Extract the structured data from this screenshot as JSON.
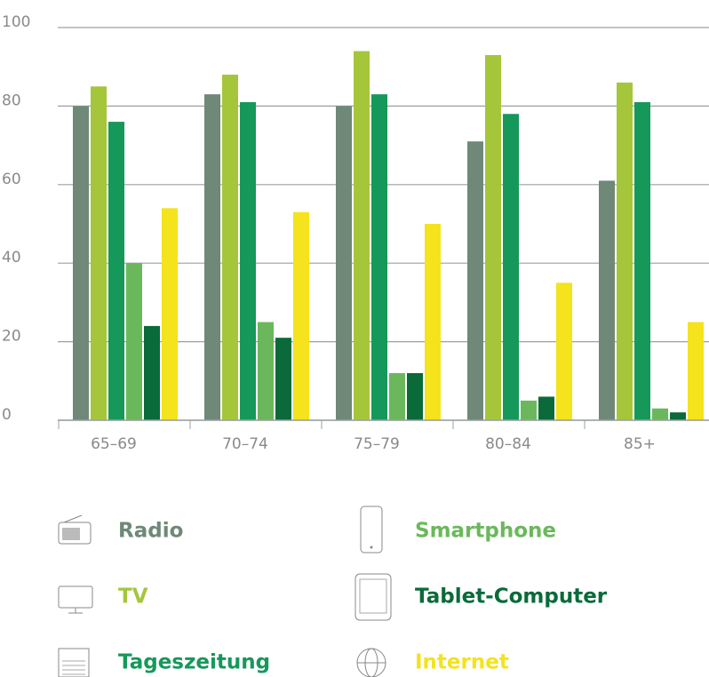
{
  "chart_data": {
    "type": "bar",
    "categories": [
      "65–69",
      "70–74",
      "75–79",
      "80–84",
      "85+"
    ],
    "series": [
      {
        "name": "Radio",
        "color": "#6f8878",
        "values": [
          80,
          83,
          80,
          71,
          61
        ]
      },
      {
        "name": "TV",
        "color": "#a5c63b",
        "values": [
          85,
          88,
          94,
          93,
          86
        ]
      },
      {
        "name": "Tageszeitung",
        "color": "#16985a",
        "values": [
          76,
          81,
          83,
          78,
          81
        ]
      },
      {
        "name": "Smartphone",
        "color": "#6bb85c",
        "values": [
          40,
          25,
          12,
          5,
          3
        ]
      },
      {
        "name": "Tablet-Computer",
        "color": "#0a6a3a",
        "values": [
          24,
          21,
          12,
          6,
          2
        ]
      },
      {
        "name": "Internet",
        "color": "#f4e31d",
        "values": [
          54,
          53,
          50,
          35,
          25
        ]
      }
    ],
    "ylim": [
      0,
      100
    ],
    "yticks": [
      0,
      20,
      40,
      60,
      80,
      100
    ],
    "grid": true
  }
}
